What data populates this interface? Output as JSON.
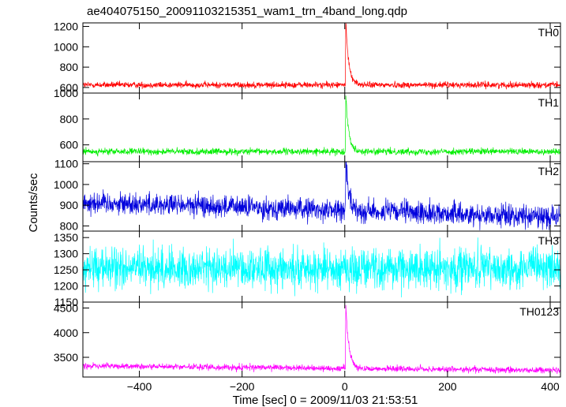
{
  "chart_data": {
    "type": "line",
    "title": "ae404075150_20091103215351_wam1_trn_4band_long.qdp",
    "xlabel": "Time [sec] 0 = 2009/11/03 21:53:51",
    "ylabel": "Counts/sec",
    "xlim": [
      -510,
      420
    ],
    "xticks": [
      -400,
      -200,
      0,
      200,
      400
    ],
    "grid": false,
    "panels": [
      {
        "name": "TH0",
        "color": "#ff0000",
        "ylim": [
          545,
          1235
        ],
        "yticks": [
          600,
          800,
          1000,
          1200
        ],
        "baseline": 625,
        "noise": 22,
        "peak_time": 2,
        "peak_value": 1230,
        "decay_values": [
          [
            5,
            900
          ],
          [
            10,
            780
          ],
          [
            20,
            700
          ],
          [
            40,
            650
          ]
        ]
      },
      {
        "name": "TH1",
        "color": "#00ee00",
        "ylim": [
          470,
          1000
        ],
        "yticks": [
          600,
          800,
          1000
        ],
        "baseline": 548,
        "noise": 18,
        "peak_time": 2,
        "peak_value": 980,
        "decay_values": [
          [
            5,
            740
          ],
          [
            10,
            650
          ],
          [
            20,
            600
          ],
          [
            40,
            570
          ]
        ]
      },
      {
        "name": "TH2",
        "color": "#0000dd",
        "ylim": [
          775,
          1110
        ],
        "yticks": [
          800,
          900,
          1000,
          1100
        ],
        "baseline_start": 915,
        "baseline_end": 842,
        "noise": 38,
        "peak_time": 2,
        "peak_value": 1100,
        "decay_values": [
          [
            5,
            960
          ],
          [
            10,
            920
          ],
          [
            20,
            890
          ]
        ]
      },
      {
        "name": "TH3",
        "color": "#00ffff",
        "ylim": [
          1150,
          1370
        ],
        "yticks": [
          1150,
          1200,
          1250,
          1300,
          1350
        ],
        "baseline": 1255,
        "noise": 45,
        "peak_time": null,
        "peak_value": null,
        "decay_values": []
      },
      {
        "name": "TH0123",
        "color": "#ff00ff",
        "ylim": [
          3100,
          4620
        ],
        "yticks": [
          3500,
          4000,
          4500
        ],
        "baseline_start": 3325,
        "baseline_end": 3235,
        "noise": 45,
        "peak_time": 2,
        "peak_value": 4560,
        "decay_values": [
          [
            5,
            3900
          ],
          [
            10,
            3600
          ],
          [
            20,
            3450
          ],
          [
            40,
            3380
          ]
        ]
      }
    ]
  }
}
